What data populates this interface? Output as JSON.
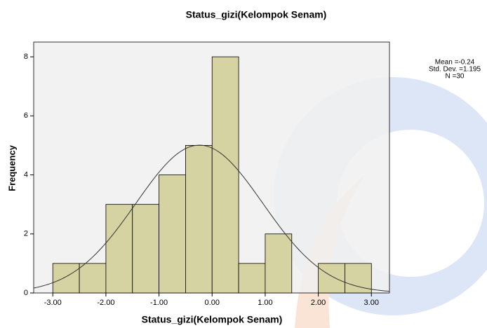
{
  "chart_data": {
    "type": "histogram",
    "title": "Status_gizi(Kelompok Senam)",
    "xlabel": "Status_gizi(Kelompok Senam)",
    "ylabel": "Frequency",
    "bins": [
      -3.0,
      -2.5,
      -2.0,
      -1.5,
      -1.0,
      -0.5,
      0.0,
      0.5,
      1.0,
      1.5,
      2.0,
      2.5,
      3.0
    ],
    "counts": [
      1,
      1,
      3,
      3,
      4,
      5,
      8,
      1,
      2,
      0,
      1,
      1
    ],
    "color": "#d6d3a3",
    "xlim": [
      -3.36,
      3.34
    ],
    "xticks": [
      {
        "value": -3,
        "label": "-3.00"
      },
      {
        "value": -2,
        "label": "-2.00"
      },
      {
        "value": -1,
        "label": "-1.00"
      },
      {
        "value": 0,
        "label": "0.00"
      },
      {
        "value": 1,
        "label": "1.00"
      },
      {
        "value": 2,
        "label": "2.00"
      },
      {
        "value": 3,
        "label": "3.00"
      }
    ],
    "ylim": [
      0,
      8.5
    ],
    "yticks": [
      0,
      2,
      4,
      6,
      8
    ],
    "normal_curve": {
      "mean": -0.24,
      "sd": 1.195,
      "n": 30
    },
    "stats_labels": [
      "Mean =-0.24",
      "Std. Dev. =1.195",
      "N =30"
    ]
  }
}
